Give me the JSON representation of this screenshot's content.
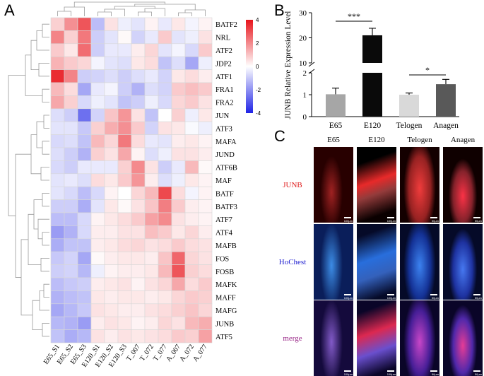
{
  "panel_labels": {
    "a": "A",
    "b": "B",
    "c": "C"
  },
  "heatmap": {
    "rows": [
      "BATF2",
      "NRL",
      "ATF2",
      "JDP2",
      "ATF1",
      "FRA1",
      "FRA2",
      "JUN",
      "ATF3",
      "MAFA",
      "JUND",
      "ATF6B",
      "MAF",
      "BATF",
      "BATF3",
      "ATF7",
      "ATF4",
      "MAFB",
      "FOS",
      "FOSB",
      "MAFK",
      "MAFF",
      "MAFG",
      "JUNB",
      "ATF5"
    ],
    "columns": [
      "E65_S1",
      "E65_S2",
      "E65_S3",
      "E120_S1",
      "E120_S2",
      "E120_S3",
      "T_007",
      "T_072",
      "T_077",
      "A_007",
      "A_072",
      "A_077"
    ],
    "colorbar_ticks": [
      "4",
      "2",
      "0",
      "-2",
      "-4"
    ],
    "colors": {
      "high": "#e8141b",
      "mid": "#ffffff",
      "low": "#1f23e6"
    },
    "values": [
      [
        0.8,
        1.9,
        2.9,
        -1.2,
        0.5,
        -0.3,
        -0.5,
        0.2,
        -0.4,
        0.4,
        -0.2,
        0.2
      ],
      [
        2.1,
        0.8,
        2.3,
        -0.9,
        -0.5,
        0.1,
        -0.8,
        -0.4,
        0.9,
        -0.5,
        -0.3,
        0.5
      ],
      [
        0.9,
        0.4,
        2.5,
        -0.9,
        -0.4,
        -0.4,
        0.3,
        0.7,
        -0.5,
        -0.2,
        -0.7,
        0.9
      ],
      [
        1.3,
        0.9,
        0.7,
        -0.2,
        -0.5,
        -0.6,
        0.4,
        0.6,
        -1.1,
        -0.6,
        -1.6,
        -0.3
      ],
      [
        3.6,
        2.1,
        -0.9,
        -0.8,
        -0.6,
        -0.9,
        -0.6,
        -0.4,
        -0.8,
        0.4,
        0.6,
        0.3
      ],
      [
        1.2,
        0.6,
        -1.6,
        -0.4,
        -0.2,
        -0.9,
        -1.4,
        -0.6,
        -0.8,
        0.9,
        1.1,
        0.9
      ],
      [
        1.5,
        0.8,
        -0.7,
        -0.3,
        -0.5,
        -1.1,
        -0.9,
        -0.3,
        -0.7,
        0.7,
        0.9,
        0.5
      ],
      [
        -0.6,
        -0.9,
        -2.6,
        -0.8,
        1.0,
        1.8,
        0.5,
        -1.1,
        0.0,
        0.8,
        -0.3,
        0.4
      ],
      [
        -0.5,
        -0.5,
        -1.0,
        0.8,
        1.4,
        1.9,
        0.9,
        -0.8,
        0.5,
        0.4,
        -0.1,
        -0.3
      ],
      [
        -0.7,
        -0.6,
        -1.1,
        1.2,
        0.7,
        2.3,
        0.6,
        -0.4,
        -0.5,
        0.3,
        0.4,
        0.2
      ],
      [
        -0.6,
        -0.9,
        -1.4,
        0.8,
        0.5,
        1.5,
        0.2,
        -0.6,
        -0.3,
        0.5,
        0.5,
        0.3
      ],
      [
        -0.7,
        -0.9,
        -0.4,
        -0.4,
        -0.4,
        0.8,
        2.0,
        0.5,
        -0.9,
        -0.4,
        1.2,
        0.1
      ],
      [
        -0.5,
        -0.4,
        -0.6,
        0.6,
        0.4,
        0.9,
        1.8,
        0.3,
        -0.6,
        -0.3,
        0.4,
        0.2
      ],
      [
        -0.5,
        -0.7,
        -1.2,
        -0.7,
        0.2,
        0.0,
        0.7,
        1.2,
        3.1,
        0.6,
        -0.2,
        0.2
      ],
      [
        -0.9,
        -0.9,
        -1.5,
        -0.5,
        0.4,
        0.1,
        0.5,
        1.0,
        2.2,
        0.9,
        0.3,
        0.2
      ],
      [
        -1.2,
        -1.2,
        -0.7,
        0.2,
        0.4,
        0.6,
        0.9,
        1.6,
        2.0,
        0.5,
        0.3,
        0.2
      ],
      [
        -1.8,
        -1.4,
        -0.7,
        0.3,
        0.3,
        0.5,
        0.5,
        1.1,
        0.9,
        0.4,
        0.7,
        0.3
      ],
      [
        -1.5,
        -1.1,
        -1.1,
        0.3,
        0.4,
        0.6,
        0.7,
        0.5,
        0.6,
        0.9,
        0.6,
        0.5
      ],
      [
        -1.0,
        -0.8,
        -1.6,
        0.1,
        0.3,
        0.4,
        0.4,
        0.3,
        1.0,
        2.6,
        0.7,
        0.5
      ],
      [
        -0.9,
        -0.8,
        -1.3,
        -0.3,
        0.2,
        0.3,
        0.3,
        0.4,
        1.2,
        2.9,
        0.8,
        0.6
      ],
      [
        -1.2,
        -1.0,
        -0.9,
        0.3,
        0.4,
        0.5,
        0.2,
        0.5,
        0.7,
        1.5,
        0.6,
        0.9
      ],
      [
        -1.4,
        -1.2,
        -1.1,
        0.4,
        0.3,
        0.4,
        0.4,
        0.3,
        0.4,
        0.7,
        0.9,
        0.8
      ],
      [
        -1.6,
        -1.3,
        -1.0,
        0.5,
        0.4,
        0.3,
        0.3,
        0.5,
        0.6,
        0.8,
        1.0,
        0.7
      ],
      [
        -1.3,
        -1.4,
        -1.8,
        0.3,
        0.5,
        0.4,
        0.2,
        0.3,
        0.7,
        0.5,
        1.2,
        1.4
      ],
      [
        -1.1,
        -1.5,
        -1.3,
        0.5,
        0.3,
        0.5,
        0.4,
        0.5,
        0.6,
        0.9,
        0.8,
        1.6
      ]
    ]
  },
  "chart_data": {
    "type": "bar",
    "title": "",
    "ylabel": "JUNB Relative Expression Level",
    "xlabel": "",
    "categories": [
      "E65",
      "E120",
      "Telogen",
      "Anagen"
    ],
    "values": [
      1.02,
      21.0,
      1.0,
      1.48
    ],
    "errors": [
      0.28,
      2.8,
      0.08,
      0.22
    ],
    "bar_colors": [
      "#a6a6a6",
      "#0a0a0a",
      "#d9d9d9",
      "#595959"
    ],
    "axis_break": {
      "lower_range": [
        0,
        2
      ],
      "upper_range": [
        10,
        30
      ]
    },
    "lower_ticks": [
      "0",
      "1",
      "2"
    ],
    "upper_ticks": [
      "10",
      "20",
      "30"
    ],
    "significance": [
      {
        "pair": [
          "E65",
          "E120"
        ],
        "label": "***"
      },
      {
        "pair": [
          "Telogen",
          "Anagen"
        ],
        "label": "*"
      }
    ]
  },
  "microscopy": {
    "columns": [
      "E65",
      "E120",
      "Telogen",
      "Anagen"
    ],
    "rows": [
      {
        "label": "JUNB",
        "color": "#e02020"
      },
      {
        "label": "HoChest",
        "color": "#2020d0"
      },
      {
        "label": "merge",
        "color": "#9b2b8a"
      }
    ],
    "scale_labels": [
      "100μm",
      "100μm",
      "50μm",
      "50μm"
    ]
  }
}
